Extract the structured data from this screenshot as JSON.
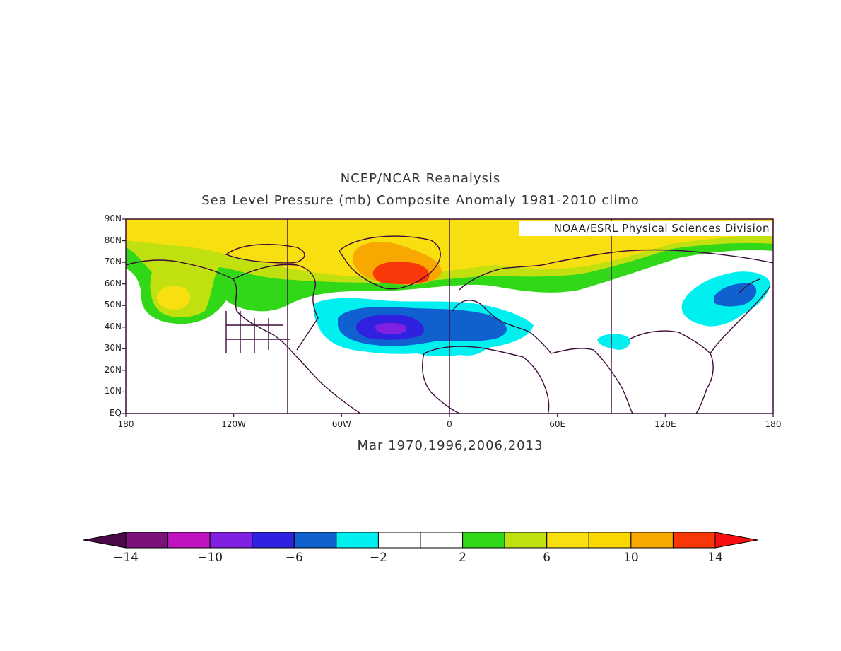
{
  "title": "NCEP/NCAR Reanalysis",
  "subtitle": "Sea Level Pressure (mb) Composite Anomaly 1981-2010 climo",
  "credit": "NOAA/ESRL Physical Sciences Division",
  "footer": "Mar 1970,1996,2006,2013",
  "map": {
    "lon_range": [
      -180,
      180
    ],
    "lat_range": [
      0,
      90
    ],
    "lat_ticks": [
      "90N",
      "80N",
      "70N",
      "60N",
      "50N",
      "40N",
      "30N",
      "20N",
      "10N",
      "EQ"
    ],
    "lon_ticks": [
      "180",
      "120W",
      "60W",
      "0",
      "60E",
      "120E",
      "180"
    ],
    "grid_meridians": [
      -90,
      0,
      90
    ],
    "coastline_color": "#3d0a3a",
    "frame_color": "#3d0a3a"
  },
  "colorbar": {
    "labels": [
      "-14",
      "-10",
      "-6",
      "-2",
      "2",
      "6",
      "10",
      "14"
    ],
    "colors": [
      "#4a0a4a",
      "#7a127a",
      "#c012c0",
      "#8020e0",
      "#3020e0",
      "#1060d0",
      "#00f0f0",
      "#ffffff",
      "#ffffff",
      "#30d818",
      "#c0e010",
      "#f8e010",
      "#f8d800",
      "#f8a800",
      "#f83808",
      "#f81010"
    ]
  },
  "anomaly_regions": [
    {
      "level": 2,
      "color": "#30d818"
    },
    {
      "level": 4,
      "color": "#c0e010"
    },
    {
      "level": 6,
      "color": "#f8e010"
    },
    {
      "level": 8,
      "color": "#f8d800"
    },
    {
      "level": 10,
      "color": "#f8a800"
    },
    {
      "level": 12,
      "color": "#f83808"
    },
    {
      "level": -2,
      "color": "#00f0f0"
    },
    {
      "level": -4,
      "color": "#1060d0"
    },
    {
      "level": -6,
      "color": "#3020e0"
    },
    {
      "level": -8,
      "color": "#8020e0"
    }
  ]
}
